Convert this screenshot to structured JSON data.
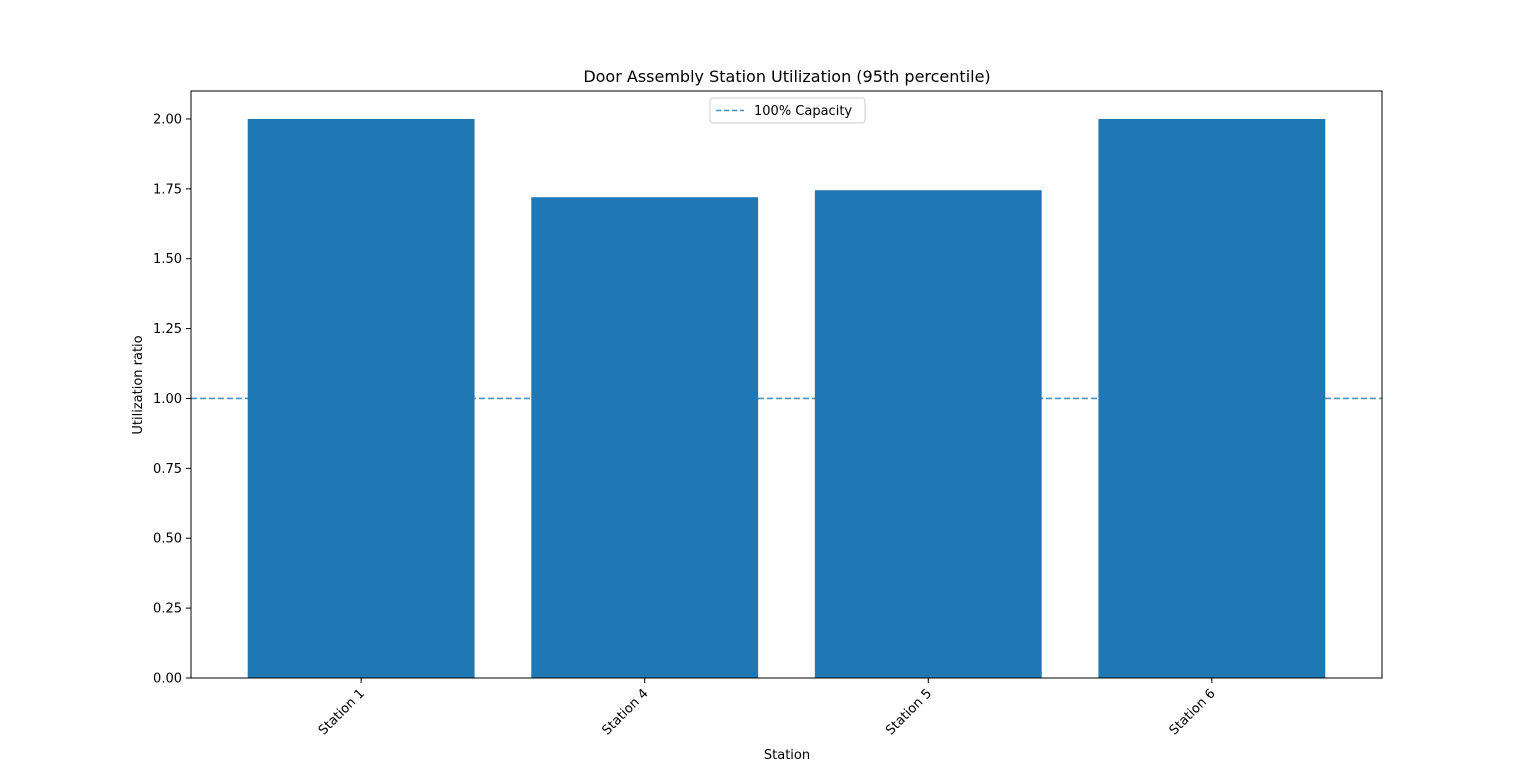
{
  "chart_data": {
    "type": "bar",
    "title": "Door Assembly Station Utilization (95th percentile)",
    "xlabel": "Station",
    "ylabel": "Utilization ratio",
    "categories": [
      "Station 1",
      "Station 4",
      "Station 5",
      "Station 6"
    ],
    "values": [
      2.0,
      1.72,
      1.745,
      2.0
    ],
    "ylim": [
      0,
      2.1
    ],
    "yticks": [
      0.0,
      0.25,
      0.5,
      0.75,
      1.0,
      1.25,
      1.5,
      1.75,
      2.0
    ],
    "ytick_labels": [
      "0.00",
      "0.25",
      "0.50",
      "0.75",
      "1.00",
      "1.25",
      "1.50",
      "1.75",
      "2.00"
    ],
    "xtick_rotation": "45 degrees",
    "grid": false,
    "bar_color": "#1f77b4",
    "reference_line": {
      "value": 1.0,
      "style": "dashed",
      "color": "#1f77b4",
      "label": "100% Capacity"
    },
    "legend": {
      "placement": "upper center",
      "entries": [
        "100% Capacity"
      ]
    }
  }
}
